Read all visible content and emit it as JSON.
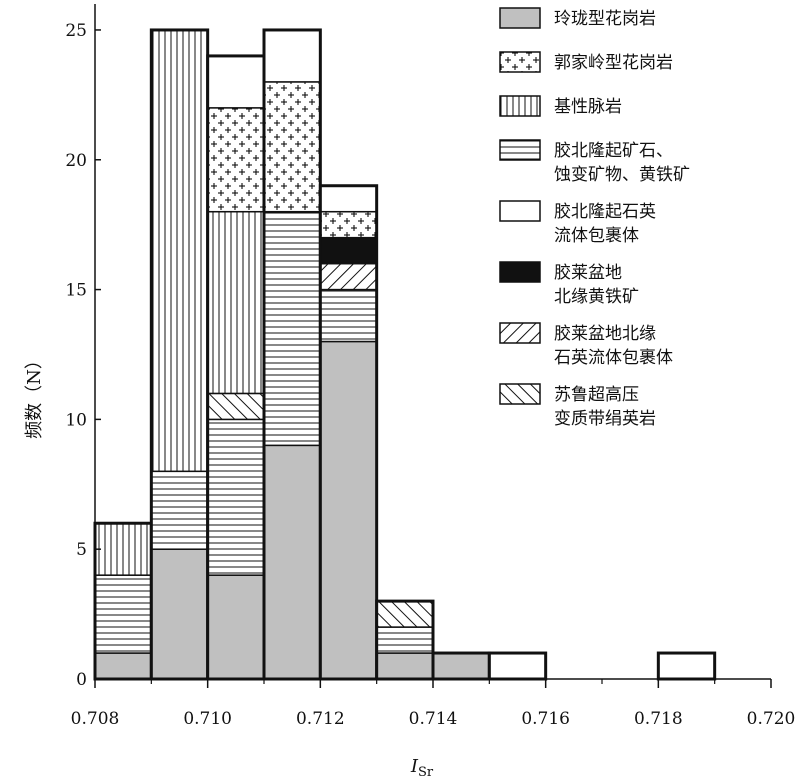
{
  "chart_data": {
    "type": "bar",
    "stacked": true,
    "xlabel": "I",
    "xlabel_subscript": "Sr",
    "ylabel": "频数（N）",
    "xlim": [
      0.708,
      0.72
    ],
    "ylim": [
      0,
      26
    ],
    "xticks": [
      "0.708",
      "0.710",
      "0.712",
      "0.714",
      "0.716",
      "0.718",
      "0.720"
    ],
    "yticks": [
      "0",
      "5",
      "10",
      "15",
      "20",
      "25"
    ],
    "bin_edges": [
      0.708,
      0.709,
      0.71,
      0.711,
      0.712,
      0.713,
      0.714,
      0.715,
      0.716,
      0.717,
      0.718,
      0.719,
      0.72
    ],
    "legend_position": "right",
    "series": [
      {
        "name": "玲珑型花岗岩",
        "pattern": "gray",
        "values": [
          1,
          5,
          4,
          9,
          13,
          1,
          1,
          0,
          0,
          0,
          0,
          0
        ]
      },
      {
        "name": "胶北隆起矿石、蚀变矿物、黄铁矿",
        "legend_lines": [
          "胶北隆起矿石、",
          "蚀变矿物、黄铁矿"
        ],
        "pattern": "hlines",
        "values": [
          3,
          3,
          6,
          9,
          2,
          1,
          0,
          0,
          0,
          0,
          0,
          0
        ]
      },
      {
        "name": "胶莱盆地北缘石英流体包裹体",
        "legend_lines": [
          "胶莱盆地北缘",
          "石英流体包裹体"
        ],
        "pattern": "fdiag",
        "values": [
          0,
          0,
          0,
          0,
          1,
          0,
          0,
          0,
          0,
          0,
          0,
          0
        ]
      },
      {
        "name": "苏鲁超高压变质带绢英岩",
        "legend_lines": [
          "苏鲁超高压",
          "变质带绢英岩"
        ],
        "pattern": "bdiag",
        "values": [
          0,
          0,
          1,
          0,
          0,
          1,
          0,
          0,
          0,
          0,
          0,
          0
        ]
      },
      {
        "name": "胶莱盆地北缘黄铁矿",
        "legend_lines": [
          "胶莱盆地",
          "北缘黄铁矿"
        ],
        "pattern": "black",
        "values": [
          0,
          0,
          0,
          0,
          1,
          0,
          0,
          0,
          0,
          0,
          0,
          0
        ]
      },
      {
        "name": "基性脉岩",
        "pattern": "vlines",
        "values": [
          2,
          17,
          7,
          0,
          0,
          0,
          0,
          0,
          0,
          0,
          0,
          0
        ]
      },
      {
        "name": "郭家岭型花岗岩",
        "pattern": "plus",
        "values": [
          0,
          0,
          4,
          5,
          1,
          0,
          0,
          0,
          0,
          0,
          0,
          0
        ]
      },
      {
        "name": "胶北隆起石英流体包裹体",
        "legend_lines": [
          "胶北隆起石英",
          "流体包裹体"
        ],
        "pattern": "white",
        "values": [
          0,
          0,
          2,
          2,
          1,
          0,
          0,
          1,
          0,
          0,
          1,
          0
        ]
      }
    ],
    "legend_order": [
      "玲珑型花岗岩",
      "郭家岭型花岗岩",
      "基性脉岩",
      "胶北隆起矿石、蚀变矿物、黄铁矿",
      "胶北隆起石英流体包裹体",
      "胶莱盆地北缘黄铁矿",
      "胶莱盆地北缘石英流体包裹体",
      "苏鲁超高压变质带绢英岩"
    ]
  }
}
